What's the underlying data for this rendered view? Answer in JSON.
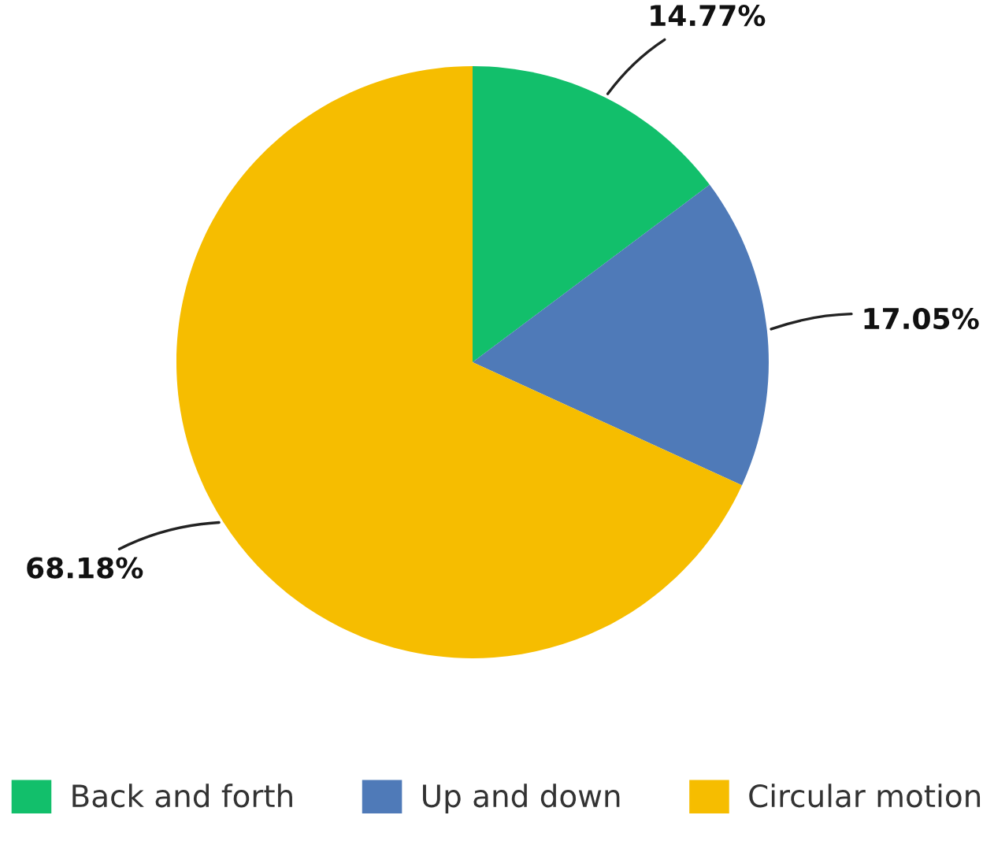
{
  "chart_data": {
    "type": "pie",
    "categories": [
      "Back and forth",
      "Up and down",
      "Circular motion"
    ],
    "values": [
      14.77,
      17.05,
      68.18
    ],
    "value_labels": [
      "14.77%",
      "17.05%",
      "68.18%"
    ],
    "colors": [
      "#12bf6b",
      "#4f7ab8",
      "#f6bd00"
    ],
    "legend": "bottom"
  }
}
